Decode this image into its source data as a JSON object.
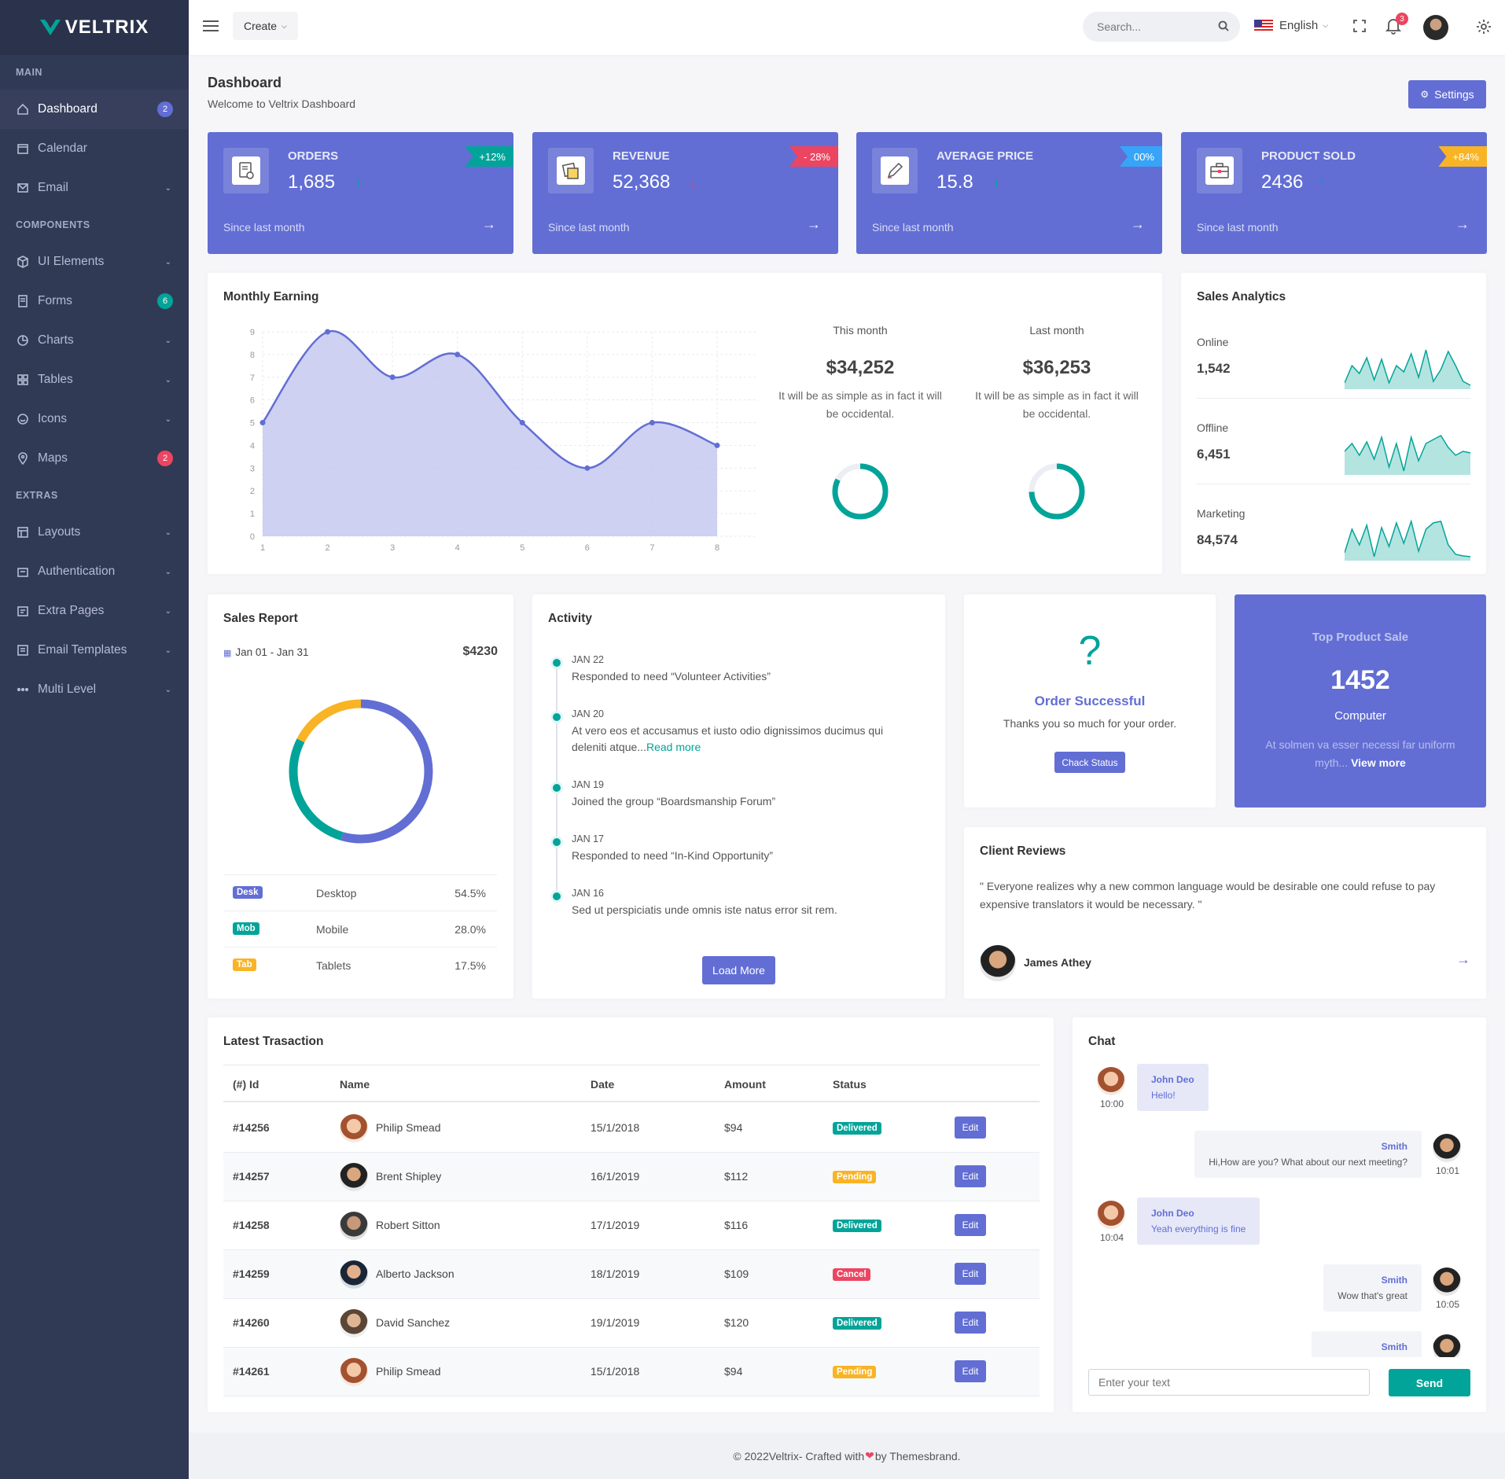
{
  "brand": {
    "name": "VELTRIX"
  },
  "sidebar": {
    "sections": {
      "main": "MAIN",
      "components": "COMPONENTS",
      "extras": "EXTRAS"
    },
    "items": [
      {
        "label": "Dashboard",
        "icon": "home-icon",
        "badge": "2"
      },
      {
        "label": "Calendar",
        "icon": "calendar-icon"
      },
      {
        "label": "Email",
        "icon": "mail-icon"
      },
      {
        "label": "UI Elements",
        "icon": "cube-icon"
      },
      {
        "label": "Forms",
        "icon": "form-icon",
        "badge": "6"
      },
      {
        "label": "Charts",
        "icon": "pie-icon"
      },
      {
        "label": "Tables",
        "icon": "grid-icon"
      },
      {
        "label": "Icons",
        "icon": "smile-icon"
      },
      {
        "label": "Maps",
        "icon": "pin-icon",
        "badge": "2"
      },
      {
        "label": "Layouts",
        "icon": "layout-icon"
      },
      {
        "label": "Authentication",
        "icon": "lock-icon"
      },
      {
        "label": "Extra Pages",
        "icon": "file-icon"
      },
      {
        "label": "Email Templates",
        "icon": "template-icon"
      },
      {
        "label": "Multi Level",
        "icon": "dots-icon"
      }
    ]
  },
  "topbar": {
    "create_label": "Create",
    "search_placeholder": "Search...",
    "language": "English",
    "notification_count": "3"
  },
  "header": {
    "title": "Dashboard",
    "subtitle": "Welcome to Veltrix Dashboard",
    "settings_label": "Settings"
  },
  "stats": [
    {
      "title": "ORDERS",
      "value": "1,685",
      "badge": "+12%",
      "badge_color": "#02a499",
      "trend": "up",
      "since": "Since last month"
    },
    {
      "title": "REVENUE",
      "value": "52,368",
      "badge": "- 28%",
      "badge_color": "#ec4561",
      "trend": "down",
      "since": "Since last month"
    },
    {
      "title": "AVERAGE PRICE",
      "value": "15.8",
      "badge": "00%",
      "badge_color": "#38a4f8",
      "trend": "up",
      "since": "Since last month"
    },
    {
      "title": "PRODUCT SOLD",
      "value": "2436",
      "badge": "+84%",
      "badge_color": "#f8b425",
      "trend": "up",
      "since": "Since last month"
    }
  ],
  "monthly": {
    "title": "Monthly Earning",
    "this_month": {
      "label": "This month",
      "amount": "$34,252",
      "desc": "It will be as simple as in fact it will be occidental."
    },
    "last_month": {
      "label": "Last month",
      "amount": "$36,253",
      "desc": "It will be as simple as in fact it will be occidental."
    }
  },
  "chart_data": {
    "type": "area",
    "x": [
      1,
      2,
      3,
      4,
      5,
      6,
      7,
      8
    ],
    "values": [
      5,
      9,
      7,
      8,
      5,
      3,
      5,
      4
    ],
    "ylim": [
      0,
      9
    ],
    "y_ticks": [
      0,
      1,
      2,
      3,
      4,
      5,
      6,
      7,
      8,
      9
    ],
    "grid": true,
    "color": "#626ed4"
  },
  "sales_analytics": {
    "title": "Sales Analytics",
    "rows": [
      {
        "label": "Online",
        "value": "1,542"
      },
      {
        "label": "Offline",
        "value": "6,451"
      },
      {
        "label": "Marketing",
        "value": "84,574"
      }
    ],
    "spark_color": "#02a499"
  },
  "sales_report": {
    "title": "Sales Report",
    "date_range": "Jan 01 - Jan 31",
    "total": "$4230",
    "rows": [
      {
        "tag": "Desk",
        "name": "Desktop",
        "pct": "54.5%",
        "color": "#626ed4"
      },
      {
        "tag": "Mob",
        "name": "Mobile",
        "pct": "28.0%",
        "color": "#02a499"
      },
      {
        "tag": "Tab",
        "name": "Tablets",
        "pct": "17.5%",
        "color": "#f8b425"
      }
    ]
  },
  "activity": {
    "title": "Activity",
    "items": [
      {
        "date": "JAN 22",
        "text": "Responded to need “Volunteer Activities”"
      },
      {
        "date": "JAN 20",
        "text": "At vero eos et accusamus et iusto odio dignissimos ducimus qui deleniti atque...",
        "link": "Read more"
      },
      {
        "date": "JAN 19",
        "text": "Joined the group “Boardsmanship Forum”"
      },
      {
        "date": "JAN 17",
        "text": "Responded to need “In-Kind Opportunity”"
      },
      {
        "date": "JAN 16",
        "text": "Sed ut perspiciatis unde omnis iste natus error sit rem."
      }
    ],
    "load_more": "Load More"
  },
  "order": {
    "icon": "?",
    "title": "Order Successful",
    "text": "Thanks you so much for your order.",
    "button": "Chack Status"
  },
  "top_product": {
    "title": "Top Product Sale",
    "value": "1452",
    "name": "Computer",
    "desc": "At solmen va esser necessi far uniform myth...",
    "link": "View more"
  },
  "reviews": {
    "title": "Client Reviews",
    "quote": "\" Everyone realizes why a new common language would be desirable one could refuse to pay expensive translators it would be necessary. \"",
    "author": "James Athey"
  },
  "transactions": {
    "title": "Latest Trasaction",
    "columns": [
      "(#) Id",
      "Name",
      "Date",
      "Amount",
      "Status"
    ],
    "rows": [
      {
        "id": "#14256",
        "name": "Philip Smead",
        "date": "15/1/2018",
        "amount": "$94",
        "status": "Delivered",
        "status_color": "#02a499",
        "edit": "Edit"
      },
      {
        "id": "#14257",
        "name": "Brent Shipley",
        "date": "16/1/2019",
        "amount": "$112",
        "status": "Pending",
        "status_color": "#f8b425",
        "edit": "Edit"
      },
      {
        "id": "#14258",
        "name": "Robert Sitton",
        "date": "17/1/2019",
        "amount": "$116",
        "status": "Delivered",
        "status_color": "#02a499",
        "edit": "Edit"
      },
      {
        "id": "#14259",
        "name": "Alberto Jackson",
        "date": "18/1/2019",
        "amount": "$109",
        "status": "Cancel",
        "status_color": "#ec4561",
        "edit": "Edit"
      },
      {
        "id": "#14260",
        "name": "David Sanchez",
        "date": "19/1/2019",
        "amount": "$120",
        "status": "Delivered",
        "status_color": "#02a499",
        "edit": "Edit"
      },
      {
        "id": "#14261",
        "name": "Philip Smead",
        "date": "15/1/2018",
        "amount": "$94",
        "status": "Pending",
        "status_color": "#f8b425",
        "edit": "Edit"
      }
    ]
  },
  "chat": {
    "title": "Chat",
    "messages": [
      {
        "who": "John Deo",
        "text": "Hello!",
        "time": "10:00"
      },
      {
        "who": "Smith",
        "text": "Hi,How are you? What about our next meeting?",
        "time": "10:01"
      },
      {
        "who": "John Deo",
        "text": "Yeah everything is fine",
        "time": "10:04"
      },
      {
        "who": "Smith",
        "text": "Wow that's great",
        "time": "10:05"
      },
      {
        "who": "Smith",
        "text": "",
        "time": ""
      }
    ],
    "input_placeholder": "Enter your text",
    "send_label": "Send"
  },
  "footer": {
    "text_before": "© 2022Veltrix- Crafted with ",
    "text_after": "by Themesbrand."
  }
}
